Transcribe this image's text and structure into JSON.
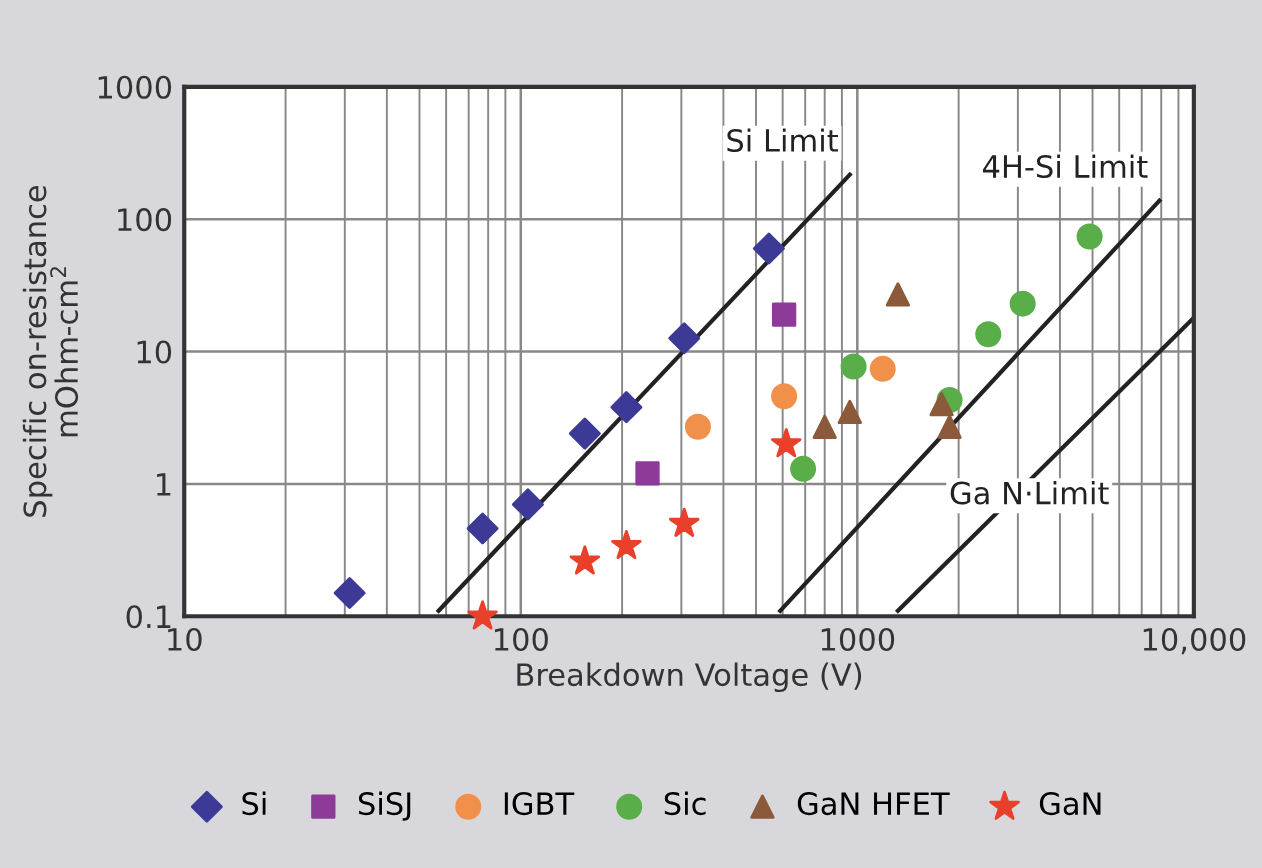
{
  "chart_data": {
    "type": "scatter",
    "xlabel": "Breakdown Voltage (V)",
    "ylabel": "Specific on-resistance\nmOhm-cm$^{2}$",
    "log": "xy",
    "xlim": [
      10,
      10000
    ],
    "ylim": [
      0.1,
      1000
    ],
    "xticks": [
      10,
      100,
      1000,
      {
        "value": 10000,
        "label": "10,000"
      }
    ],
    "yticks": [
      0.1,
      1,
      10,
      100,
      1000
    ],
    "grid": true,
    "legend": "bottom",
    "series": [
      {
        "name": "Si",
        "color": "#3c3a96",
        "marker": "diamond",
        "x": [
          31,
          77,
          105,
          155,
          206,
          306,
          546
        ],
        "values": [
          0.15,
          0.46,
          0.7,
          2.4,
          3.8,
          12.6,
          60
        ]
      },
      {
        "name": "SiSJ",
        "color": "#8e3a98",
        "marker": "square",
        "x": [
          238,
          606
        ],
        "values": [
          1.2,
          19
        ]
      },
      {
        "name": "IGBT",
        "color": "#f0904a",
        "marker": "circle",
        "x": [
          336,
          606,
          1190
        ],
        "values": [
          2.7,
          4.6,
          7.4
        ]
      },
      {
        "name": "Sic",
        "color": "#5aae4a",
        "marker": "circle",
        "x": [
          690,
          975,
          1880,
          2450,
          3100,
          4900
        ],
        "values": [
          1.3,
          7.7,
          4.3,
          13.5,
          23,
          74
        ]
      },
      {
        "name": "GaN HFET",
        "color": "#8a5a3a",
        "marker": "triangle",
        "x": [
          800,
          950,
          1320,
          1780,
          1880
        ],
        "values": [
          2.7,
          3.5,
          27,
          4.0,
          2.7
        ]
      },
      {
        "name": "GaN",
        "color": "#e8402a",
        "marker": "star",
        "x": [
          77,
          155,
          206,
          306,
          615
        ],
        "values": [
          0.1,
          0.26,
          0.34,
          0.5,
          2.0
        ]
      },
      {
        "name": "Si Limit",
        "type": "line",
        "color": "#222222",
        "marker": "none",
        "x": [
          57,
          950
        ],
        "values": [
          0.11,
          217
        ]
      },
      {
        "name": "4H-Si Limit",
        "type": "line",
        "color": "#222222",
        "marker": "none",
        "x": [
          590,
          7900
        ],
        "values": [
          0.11,
          138
        ]
      },
      {
        "name": "Ga N·Limit",
        "type": "line",
        "color": "#222222",
        "marker": "none",
        "x": [
          1320,
          10000
        ],
        "values": [
          0.11,
          18
        ]
      }
    ]
  }
}
